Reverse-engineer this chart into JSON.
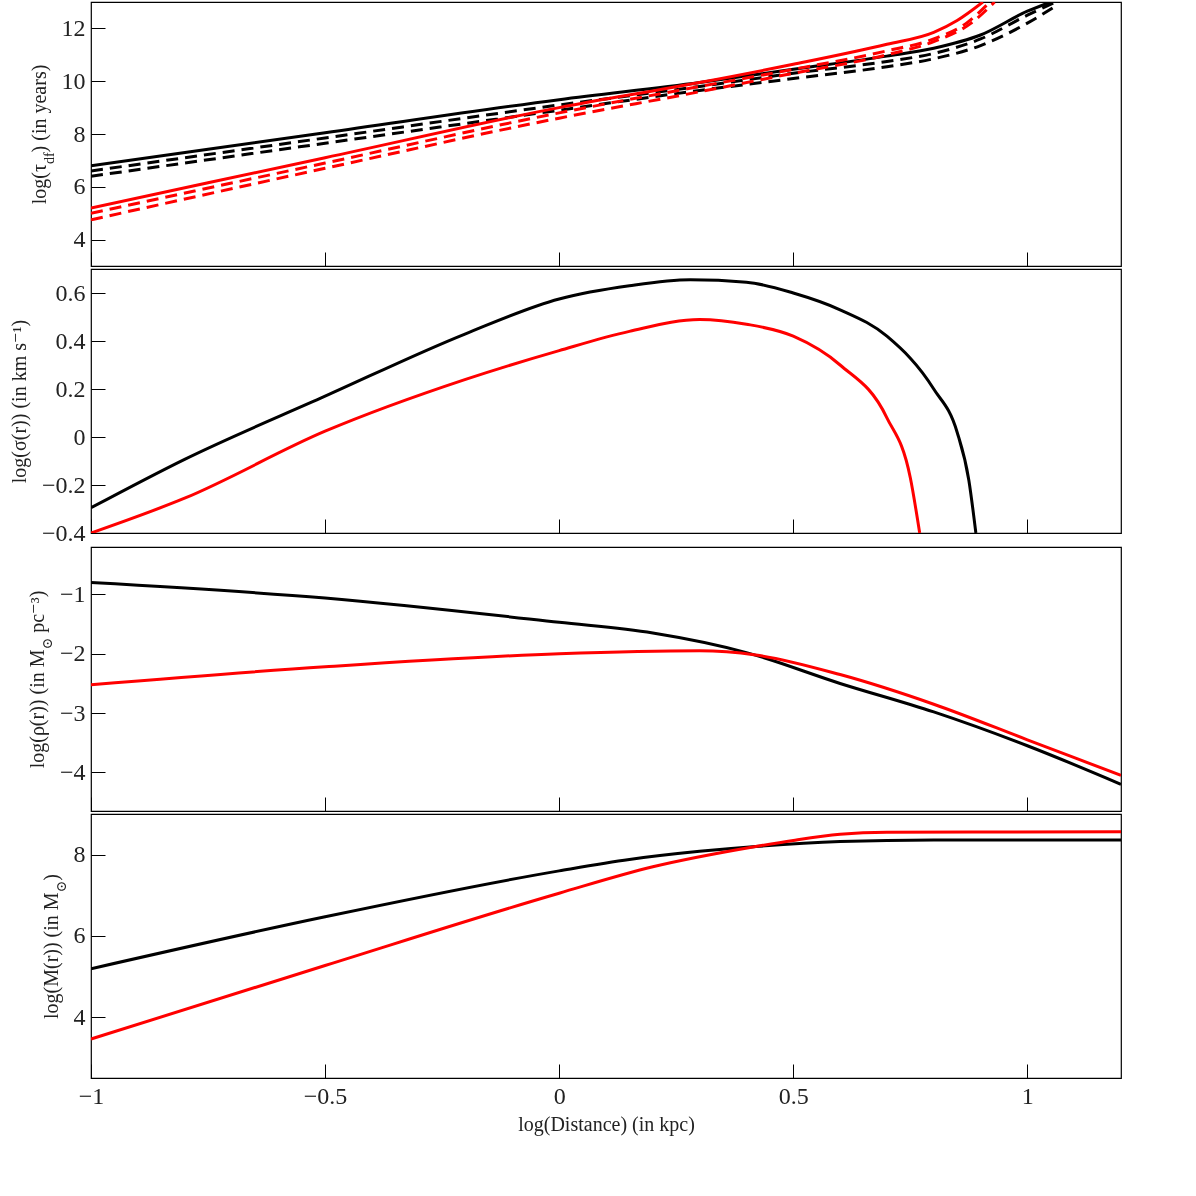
{
  "chart_data": [
    {
      "type": "line",
      "ylabel": "log(τ$_{df}$) (in years)",
      "xlim": [
        -1,
        1.2
      ],
      "xticks": [
        -1,
        -0.5,
        0,
        0.5,
        1
      ],
      "ylim": [
        3,
        13
      ],
      "yticks": [
        4,
        6,
        8,
        10,
        12
      ],
      "tick_labels": "y",
      "series": [
        {
          "color": "#000000",
          "line_style": "solid",
          "x": [
            -1,
            -0.5,
            0,
            0.3,
            0.5,
            0.7,
            0.8,
            0.9,
            1.0,
            1.05
          ],
          "values": [
            6.8,
            8.05,
            9.3,
            9.95,
            10.45,
            10.95,
            11.25,
            11.75,
            12.65,
            13
          ]
        },
        {
          "color": "#000000",
          "line_style": "dashed",
          "x": [
            -1,
            -0.5,
            0,
            0.3,
            0.5,
            0.7,
            0.8,
            0.9,
            1.0,
            1.06
          ],
          "values": [
            6.6,
            7.85,
            9.1,
            9.8,
            10.3,
            10.75,
            11.05,
            11.6,
            12.5,
            13
          ]
        },
        {
          "color": "#000000",
          "line_style": "dashed",
          "x": [
            -1,
            -0.5,
            0,
            0.3,
            0.5,
            0.7,
            0.8,
            0.9,
            1.0,
            1.065
          ],
          "values": [
            6.4,
            7.65,
            8.9,
            9.65,
            10.1,
            10.55,
            10.85,
            11.35,
            12.2,
            12.9
          ]
        },
        {
          "color": "#ff0000",
          "line_style": "solid",
          "x": [
            -1,
            -0.5,
            0,
            0.3,
            0.5,
            0.7,
            0.8,
            0.85,
            0.905
          ],
          "values": [
            5.2,
            7.1,
            9.0,
            9.95,
            10.64,
            11.4,
            11.85,
            12.3,
            13
          ]
        },
        {
          "color": "#ff0000",
          "line_style": "dashed",
          "x": [
            -1,
            -0.5,
            0,
            0.3,
            0.5,
            0.7,
            0.8,
            0.87,
            0.92
          ],
          "values": [
            5.0,
            6.9,
            8.8,
            9.8,
            10.45,
            11.15,
            11.6,
            12.2,
            13
          ]
        },
        {
          "color": "#ff0000",
          "line_style": "dashed",
          "x": [
            -1,
            -0.5,
            0,
            0.3,
            0.5,
            0.7,
            0.8,
            0.88,
            0.93
          ],
          "values": [
            4.75,
            6.7,
            8.6,
            9.6,
            10.3,
            11.0,
            11.5,
            12.2,
            13
          ]
        }
      ]
    },
    {
      "type": "line",
      "ylabel": "log(σ(r)) (in km s⁻¹)",
      "xlim": [
        -1,
        1.2
      ],
      "xticks": [
        -1,
        -0.5,
        0,
        0.5,
        1
      ],
      "ylim": [
        -0.4,
        0.7
      ],
      "yticks": [
        -0.4,
        -0.2,
        0,
        0.2,
        0.4,
        0.6
      ],
      "tick_labels": "y",
      "series": [
        {
          "color": "#000000",
          "x": [
            -1,
            -0.8,
            -0.5,
            -0.2,
            0,
            0.15,
            0.28,
            0.4,
            0.5,
            0.6,
            0.7,
            0.8,
            0.85,
            0.875,
            0.89
          ],
          "values": [
            -0.295,
            -0.093,
            0.17,
            0.43,
            0.575,
            0.63,
            0.655,
            0.645,
            0.6,
            0.53,
            0.42,
            0.2,
            0.02,
            -0.18,
            -0.4
          ]
        },
        {
          "color": "#ff0000",
          "x": [
            -1,
            -0.8,
            -0.5,
            -0.2,
            0,
            0.15,
            0.3,
            0.4,
            0.5,
            0.6,
            0.7,
            0.75,
            0.77
          ],
          "values": [
            -0.4,
            -0.255,
            0.024,
            0.24,
            0.36,
            0.44,
            0.49,
            0.47,
            0.42,
            0.3,
            0.08,
            -0.17,
            -0.4
          ]
        }
      ]
    },
    {
      "type": "line",
      "ylabel": "log(ρ(r)) (in M$_{⊙}$ pc⁻³)",
      "xlim": [
        -1,
        1.2
      ],
      "xticks": [
        -1,
        -0.5,
        0,
        0.5,
        1
      ],
      "ylim": [
        -4.65,
        -0.2
      ],
      "yticks": [
        -4,
        -3,
        -2,
        -1
      ],
      "tick_labels": "y",
      "series": [
        {
          "color": "#000000",
          "x": [
            -1,
            -0.5,
            0,
            0.2,
            0.4,
            0.6,
            0.8,
            1.0,
            1.2
          ],
          "values": [
            -0.8,
            -1.06,
            -1.47,
            -1.65,
            -1.98,
            -2.5,
            -2.98,
            -3.55,
            -4.2
          ]
        },
        {
          "color": "#ff0000",
          "x": [
            -1,
            -0.5,
            0,
            0.3,
            0.42,
            0.6,
            0.8,
            1.0,
            1.2
          ],
          "values": [
            -2.52,
            -2.22,
            -2.0,
            -1.95,
            -2.02,
            -2.35,
            -2.85,
            -3.45,
            -4.05
          ]
        }
      ]
    },
    {
      "type": "line",
      "ylabel": "log(M(r)) (in M$_{⊙}$)",
      "xlabel": "log(Distance) (in kpc)",
      "xlim": [
        -1,
        1.2
      ],
      "xticks": [
        -1,
        -0.5,
        0,
        0.5,
        1
      ],
      "ylim": [
        2.5,
        9
      ],
      "yticks": [
        4,
        6,
        8
      ],
      "series": [
        {
          "color": "#000000",
          "x": [
            -1,
            -0.5,
            0,
            0.15,
            0.3,
            0.42,
            0.6,
            0.8,
            1.2
          ],
          "values": [
            5.19,
            6.47,
            7.6,
            7.88,
            8.08,
            8.2,
            8.32,
            8.36,
            8.36
          ]
        },
        {
          "color": "#ff0000",
          "x": [
            -1,
            -0.5,
            0,
            0.2,
            0.42,
            0.5,
            0.6,
            0.7,
            1.2
          ],
          "values": [
            3.46,
            5.27,
            7.05,
            7.7,
            8.2,
            8.35,
            8.5,
            8.55,
            8.56
          ]
        }
      ]
    }
  ]
}
